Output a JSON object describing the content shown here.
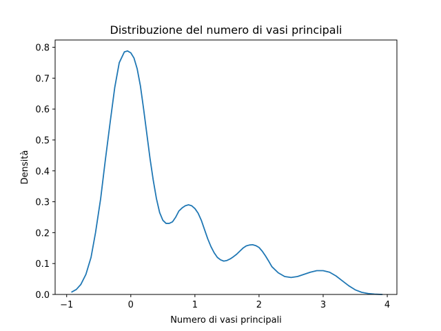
{
  "chart_data": {
    "type": "line",
    "title": "Distribuzione del numero di vasi principali",
    "xlabel": "Numero di vasi principali",
    "ylabel": "Densità",
    "xlim": [
      -1.18,
      4.15
    ],
    "ylim": [
      0,
      0.8235
    ],
    "x_ticks": [
      -1,
      0,
      1,
      2,
      3,
      4
    ],
    "y_ticks": [
      0.0,
      0.1,
      0.2,
      0.3,
      0.4,
      0.5,
      0.6,
      0.7,
      0.8
    ],
    "grid": false,
    "line_color": "#1f77b4",
    "series": [
      {
        "x": [
          -0.92,
          -0.85,
          -0.78,
          -0.7,
          -0.62,
          -0.55,
          -0.47,
          -0.4,
          -0.32,
          -0.25,
          -0.18,
          -0.1,
          -0.05,
          0.0,
          0.05,
          0.1,
          0.15,
          0.2,
          0.25,
          0.3,
          0.35,
          0.4,
          0.45,
          0.5,
          0.55,
          0.6,
          0.65,
          0.7,
          0.75,
          0.8,
          0.85,
          0.9,
          0.95,
          1.0,
          1.05,
          1.1,
          1.15,
          1.2,
          1.25,
          1.3,
          1.35,
          1.4,
          1.45,
          1.5,
          1.55,
          1.6,
          1.65,
          1.7,
          1.75,
          1.8,
          1.85,
          1.9,
          1.95,
          2.0,
          2.05,
          2.1,
          2.15,
          2.2,
          2.3,
          2.4,
          2.5,
          2.6,
          2.7,
          2.8,
          2.9,
          3.0,
          3.1,
          3.2,
          3.3,
          3.4,
          3.5,
          3.6,
          3.7,
          3.8,
          3.92
        ],
        "y": [
          0.008,
          0.016,
          0.032,
          0.065,
          0.12,
          0.2,
          0.31,
          0.43,
          0.56,
          0.67,
          0.75,
          0.785,
          0.788,
          0.782,
          0.765,
          0.73,
          0.675,
          0.6,
          0.52,
          0.44,
          0.37,
          0.31,
          0.265,
          0.24,
          0.23,
          0.23,
          0.235,
          0.25,
          0.27,
          0.28,
          0.287,
          0.29,
          0.287,
          0.278,
          0.263,
          0.24,
          0.21,
          0.18,
          0.155,
          0.135,
          0.12,
          0.112,
          0.108,
          0.11,
          0.115,
          0.122,
          0.13,
          0.14,
          0.15,
          0.157,
          0.16,
          0.161,
          0.158,
          0.152,
          0.14,
          0.125,
          0.108,
          0.09,
          0.07,
          0.058,
          0.055,
          0.058,
          0.065,
          0.072,
          0.077,
          0.077,
          0.072,
          0.06,
          0.044,
          0.028,
          0.015,
          0.007,
          0.003,
          0.001,
          0.0
        ]
      }
    ]
  }
}
